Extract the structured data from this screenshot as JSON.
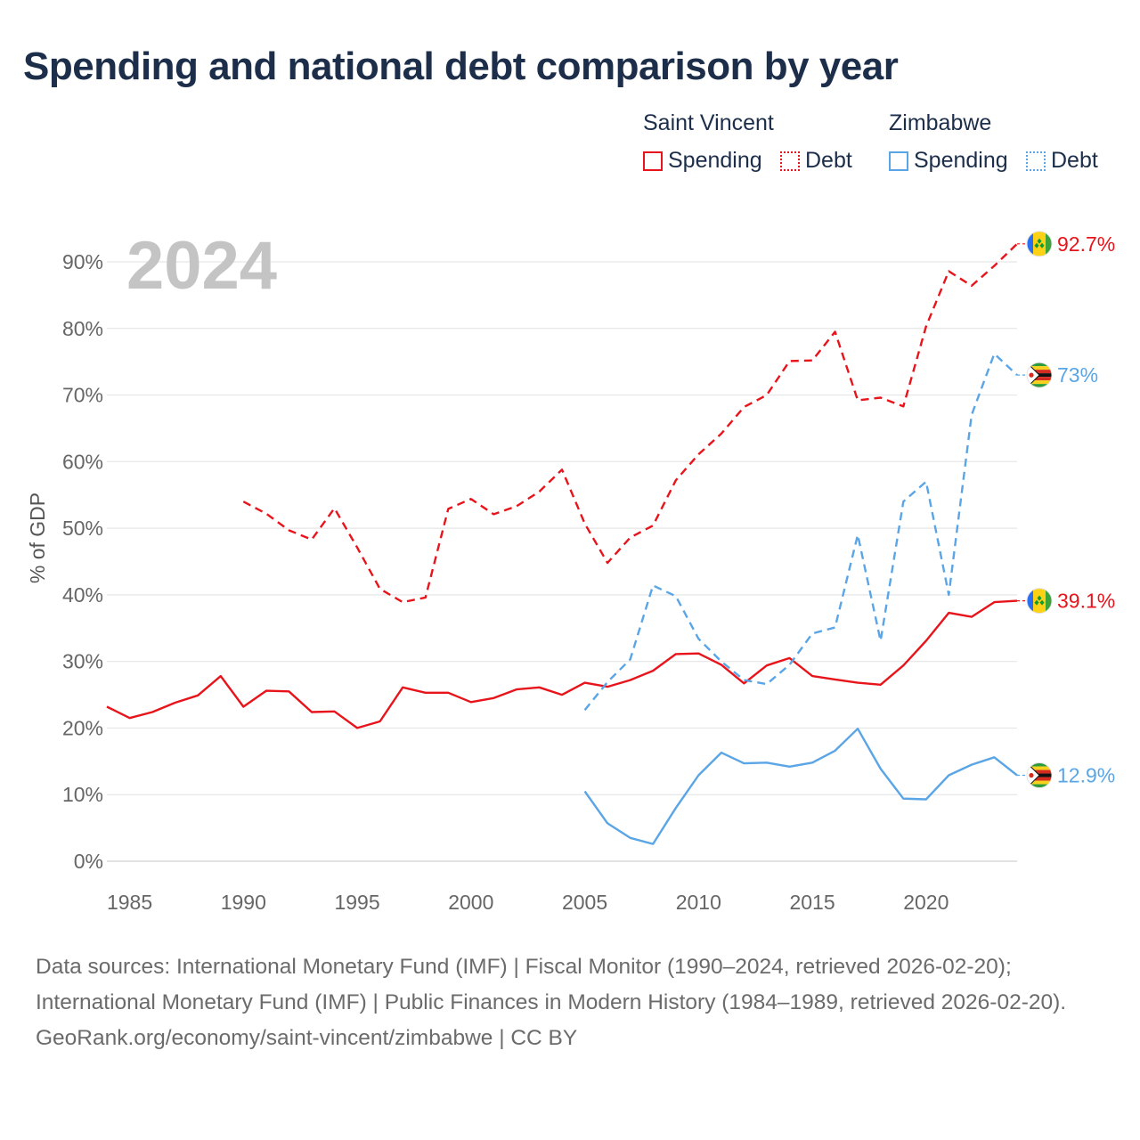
{
  "title": "Spending and national debt comparison by year",
  "legend": {
    "groups": [
      {
        "name": "Saint Vincent",
        "spending_label": "Spending",
        "debt_label": "Debt",
        "color": "#e8141b"
      },
      {
        "name": "Zimbabwe",
        "spending_label": "Spending",
        "debt_label": "Debt",
        "color": "#5aa5e6"
      }
    ]
  },
  "footer": {
    "sources": "Data sources: International Monetary Fund (IMF) | Fiscal Monitor (1990–2024, retrieved 2026-02-20); International Monetary Fund (IMF) | Public Finances in Modern History (1984–1989, retrieved 2026-02-20).",
    "credit": "GeoRank.org/economy/saint-vincent/zimbabwe | CC BY"
  },
  "chart_data": {
    "type": "line",
    "title": "Spending and national debt comparison by year",
    "year_label": "2024",
    "xlabel": "",
    "ylabel": "% of GDP",
    "xlim": [
      1984,
      2024
    ],
    "ylim": [
      0,
      90
    ],
    "xticks": [
      1985,
      1990,
      1995,
      2000,
      2005,
      2010,
      2015,
      2020
    ],
    "yticks": [
      0,
      10,
      20,
      30,
      40,
      50,
      60,
      70,
      80,
      90
    ],
    "grid": true,
    "series": [
      {
        "name": "Saint Vincent Spending",
        "country": "Saint Vincent",
        "metric": "Spending",
        "color": "#e8141b",
        "dash": "solid",
        "end_label": "39.1%",
        "flag": "saint-vincent",
        "start_year": 1984,
        "values": [
          23.2,
          21.5,
          22.4,
          23.8,
          24.9,
          27.8,
          23.2,
          25.6,
          25.5,
          22.4,
          22.5,
          20.0,
          21.0,
          26.1,
          25.3,
          25.3,
          23.9,
          24.5,
          25.8,
          26.1,
          25.0,
          26.8,
          26.2,
          27.2,
          28.6,
          31.1,
          31.2,
          29.5,
          26.7,
          29.4,
          30.5,
          27.8,
          27.3,
          26.8,
          26.5,
          29.4,
          33.1,
          37.3,
          36.7,
          38.9,
          39.1
        ]
      },
      {
        "name": "Saint Vincent Debt",
        "country": "Saint Vincent",
        "metric": "Debt",
        "color": "#e8141b",
        "dash": "dashed",
        "end_label": "92.7%",
        "flag": "saint-vincent",
        "start_year": 1990,
        "values": [
          54.0,
          52.2,
          49.7,
          48.3,
          53.0,
          47.1,
          40.9,
          38.9,
          39.6,
          52.9,
          54.4,
          52.1,
          53.3,
          55.5,
          58.8,
          50.7,
          44.8,
          48.6,
          50.4,
          57.2,
          61.1,
          64.2,
          68.2,
          70.0,
          75.1,
          75.2,
          79.5,
          69.2,
          69.6,
          68.3,
          80.3,
          88.6,
          86.4,
          89.4,
          92.7
        ]
      },
      {
        "name": "Zimbabwe Spending",
        "country": "Zimbabwe",
        "metric": "Spending",
        "color": "#5aa5e6",
        "dash": "solid",
        "end_label": "12.9%",
        "flag": "zimbabwe",
        "start_year": 2005,
        "values": [
          10.5,
          5.7,
          3.5,
          2.6,
          8.0,
          12.9,
          16.3,
          14.7,
          14.8,
          14.2,
          14.8,
          16.6,
          19.9,
          13.9,
          9.4,
          9.3,
          12.9,
          14.5,
          15.6,
          12.9
        ]
      },
      {
        "name": "Zimbabwe Debt",
        "country": "Zimbabwe",
        "metric": "Debt",
        "color": "#5aa5e6",
        "dash": "dashed",
        "end_label": "73%",
        "flag": "zimbabwe",
        "start_year": 2005,
        "values": [
          22.7,
          26.9,
          30.3,
          41.4,
          39.8,
          33.4,
          30.0,
          27.2,
          26.6,
          29.5,
          34.2,
          35.1,
          49.0,
          33.1,
          54.0,
          57.0,
          40.0,
          67.0,
          76.2,
          73.0
        ]
      }
    ]
  }
}
